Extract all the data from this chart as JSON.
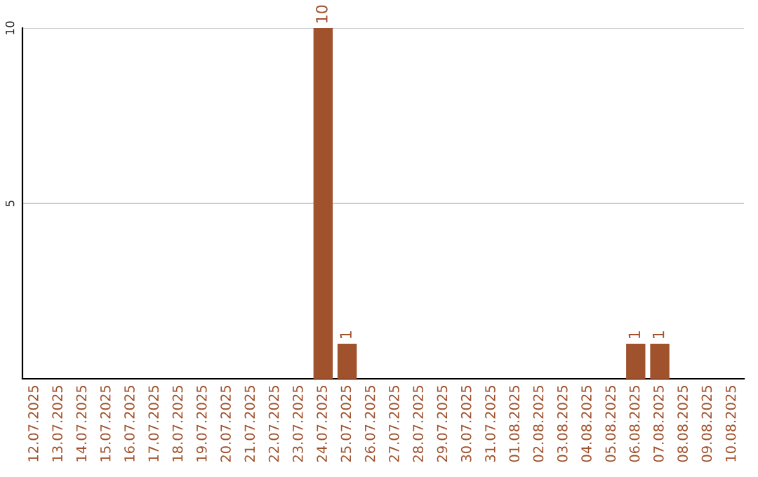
{
  "chart_data": {
    "type": "bar",
    "categories": [
      "12.07.2025",
      "13.07.2025",
      "14.07.2025",
      "15.07.2025",
      "16.07.2025",
      "17.07.2025",
      "18.07.2025",
      "19.07.2025",
      "20.07.2025",
      "21.07.2025",
      "22.07.2025",
      "23.07.2025",
      "24.07.2025",
      "25.07.2025",
      "26.07.2025",
      "27.07.2025",
      "28.07.2025",
      "29.07.2025",
      "30.07.2025",
      "31.07.2025",
      "01.08.2025",
      "02.08.2025",
      "03.08.2025",
      "04.08.2025",
      "05.08.2025",
      "06.08.2025",
      "07.08.2025",
      "08.08.2025",
      "09.08.2025",
      "10.08.2025"
    ],
    "values": [
      0,
      0,
      0,
      0,
      0,
      0,
      0,
      0,
      0,
      0,
      0,
      0,
      10,
      1,
      0,
      0,
      0,
      0,
      0,
      0,
      0,
      0,
      0,
      0,
      0,
      1,
      1,
      0,
      0,
      0
    ],
    "value_labels": [
      null,
      null,
      null,
      null,
      null,
      null,
      null,
      null,
      null,
      null,
      null,
      null,
      "10",
      "1",
      null,
      null,
      null,
      null,
      null,
      null,
      null,
      null,
      null,
      null,
      null,
      "1",
      "1",
      null,
      null,
      null
    ],
    "color": "#a0522d",
    "ylim": [
      0,
      10
    ],
    "yticks": [
      5,
      10
    ],
    "grid": "y",
    "legend": false
  }
}
